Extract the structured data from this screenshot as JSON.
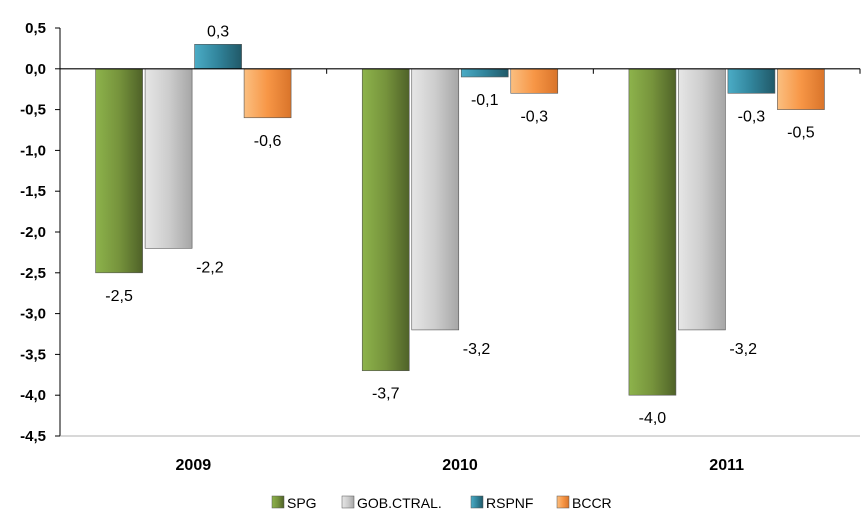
{
  "chart_data": {
    "type": "bar",
    "categories": [
      "2009",
      "2010",
      "2011"
    ],
    "series": [
      {
        "name": "SPG",
        "color": "#76933c",
        "values": [
          -2.5,
          -3.7,
          -4.0
        ],
        "labels": [
          "-2,5",
          "-3,7",
          "-4,0"
        ]
      },
      {
        "name": "GOB.CTRAL.",
        "color": "#c8c8c8",
        "values": [
          -2.2,
          -3.2,
          -3.2
        ],
        "labels": [
          "-2,2",
          "-3,2",
          "-3,2"
        ]
      },
      {
        "name": "RSPNF",
        "color": "#31849b",
        "values": [
          0.3,
          -0.1,
          -0.3
        ],
        "labels": [
          "0,3",
          "-0,1",
          "-0,3"
        ]
      },
      {
        "name": "BCCR",
        "color": "#f79646",
        "values": [
          -0.6,
          -0.3,
          -0.5
        ],
        "labels": [
          "-0,6",
          "-0,3",
          "-0,5"
        ]
      }
    ],
    "yticks": [
      {
        "value": 0.5,
        "label": "0,5"
      },
      {
        "value": 0.0,
        "label": "0,0"
      },
      {
        "value": -0.5,
        "label": "-0,5"
      },
      {
        "value": -1.0,
        "label": "-1,0"
      },
      {
        "value": -1.5,
        "label": "-1,5"
      },
      {
        "value": -2.0,
        "label": "-2,0"
      },
      {
        "value": -2.5,
        "label": "-2,5"
      },
      {
        "value": -3.0,
        "label": "-3,0"
      },
      {
        "value": -3.5,
        "label": "-3,5"
      },
      {
        "value": -4.0,
        "label": "-4,0"
      },
      {
        "value": -4.5,
        "label": "-4,5"
      }
    ],
    "ylim": [
      -4.5,
      0.5
    ],
    "title": "",
    "xlabel": "",
    "ylabel": "",
    "grid": false,
    "legend_position": "bottom"
  }
}
